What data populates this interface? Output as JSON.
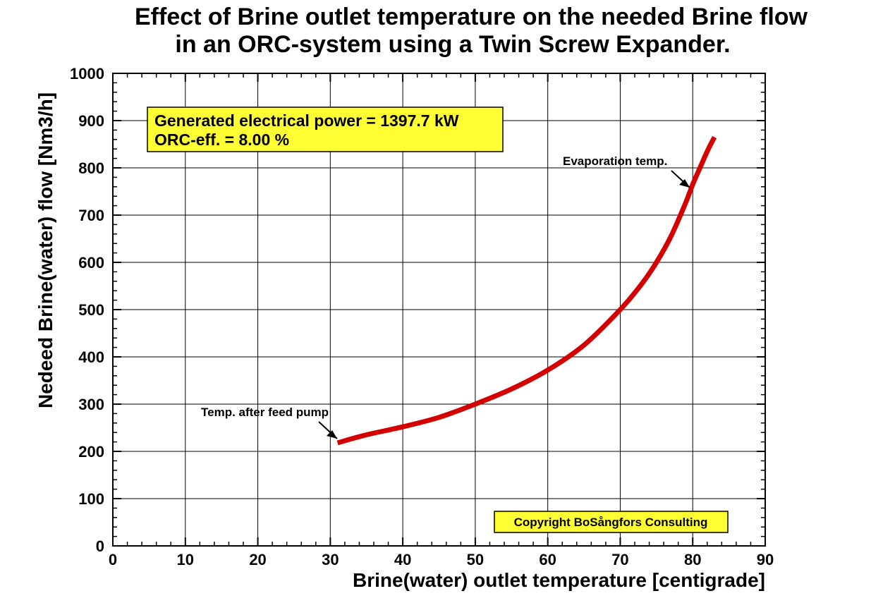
{
  "chart_data": {
    "type": "line",
    "title": [
      "Effect of Brine outlet temperature on the needed Brine flow",
      "in an ORC-system using a Twin Screw Expander."
    ],
    "xlabel": "Brine(water) outlet temperature [centigrade]",
    "ylabel": "Nedeed Brine(water) flow [Nm3/h]",
    "xlim": [
      0,
      90
    ],
    "ylim": [
      0,
      1000
    ],
    "xticks": [
      0,
      10,
      20,
      30,
      40,
      50,
      60,
      70,
      80,
      90
    ],
    "yticks": [
      0,
      100,
      200,
      300,
      400,
      500,
      600,
      700,
      800,
      900,
      1000
    ],
    "grid": true,
    "series": [
      {
        "color": "#d40000",
        "x": [
          31,
          35,
          40,
          45,
          50,
          55,
          60,
          65,
          70,
          73,
          75,
          77,
          79,
          80,
          81,
          82,
          83
        ],
        "y": [
          218,
          235,
          252,
          272,
          300,
          332,
          372,
          425,
          500,
          555,
          600,
          655,
          725,
          765,
          800,
          835,
          865
        ]
      }
    ],
    "annotations": [
      {
        "text": "Temp. after feed pump",
        "x": 31,
        "y": 218
      },
      {
        "text": "Evaporation temp.",
        "x": 80,
        "y": 760
      }
    ],
    "info_box": {
      "lines": [
        "Generated electrical power = 1397.7 kW",
        "ORC-eff. = 8.00 %"
      ],
      "color": "#ffff33"
    },
    "copyright": {
      "text": "Copyright BoSångfors Consulting",
      "color": "#ffff33"
    }
  }
}
